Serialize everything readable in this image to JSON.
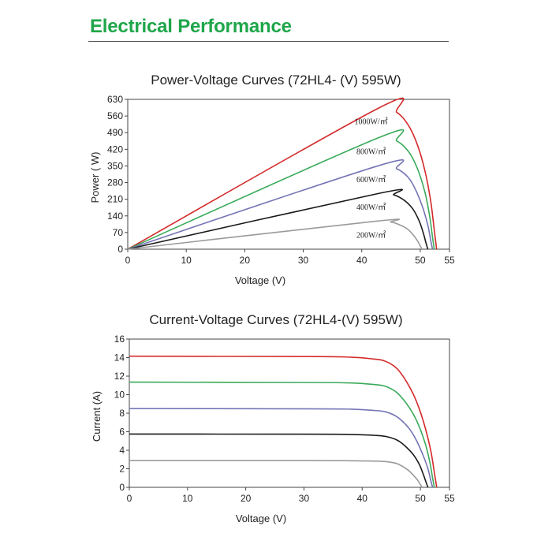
{
  "header": {
    "title": "Electrical Performance",
    "accent_color": "#1fa64a"
  },
  "chart_data": [
    {
      "type": "line",
      "title": "Power-Voltage Curves (72HL4- (V) 595W)",
      "xlabel": "Voltage (V)",
      "ylabel": "Power ( W)",
      "xlim": [
        0,
        55
      ],
      "ylim": [
        0,
        630
      ],
      "xticks": [
        0,
        10,
        20,
        30,
        40,
        50,
        55
      ],
      "yticks": [
        0,
        70,
        140,
        210,
        280,
        350,
        420,
        490,
        560,
        630
      ],
      "grid": false,
      "series": [
        {
          "name": "1000W/㎡",
          "color": "#d42a2a",
          "x": [
            0,
            43.0,
            46.0,
            48.0,
            49.5,
            50.8,
            51.8,
            52.4,
            52.8
          ],
          "y": [
            0,
            595,
            575,
            520,
            440,
            330,
            200,
            80,
            0
          ]
        },
        {
          "name": "800W/㎡",
          "color": "#3aaa5a",
          "x": [
            0,
            43.0,
            46.0,
            48.0,
            49.5,
            50.8,
            51.6,
            52.1,
            52.4
          ],
          "y": [
            0,
            470,
            455,
            410,
            340,
            240,
            140,
            50,
            0
          ]
        },
        {
          "name": "600W/㎡",
          "color": "#7474b6",
          "x": [
            0,
            43.0,
            46.0,
            48.0,
            49.3,
            50.5,
            51.3,
            51.8,
            52.1
          ],
          "y": [
            0,
            352,
            338,
            300,
            245,
            170,
            100,
            35,
            0
          ]
        },
        {
          "name": "400W/㎡",
          "color": "#1a1a1a",
          "x": [
            0,
            43.0,
            45.5,
            47.3,
            48.7,
            49.8,
            50.5,
            51.0,
            51.3
          ],
          "y": [
            0,
            235,
            228,
            205,
            170,
            120,
            70,
            25,
            0
          ]
        },
        {
          "name": "200W/㎡",
          "color": "#9a9a9a",
          "x": [
            0,
            42.5,
            45.0,
            46.5,
            47.8,
            48.8,
            49.5,
            50.0,
            50.3
          ],
          "y": [
            0,
            118,
            114,
            102,
            85,
            60,
            36,
            14,
            0
          ]
        }
      ]
    },
    {
      "type": "line",
      "title": "Current-Voltage Curves (72HL4-(V) 595W)",
      "xlabel": "Voltage (V)",
      "ylabel": "Current (A)",
      "xlim": [
        0,
        55
      ],
      "ylim": [
        0,
        16
      ],
      "xticks": [
        0,
        10,
        20,
        30,
        40,
        50,
        55
      ],
      "yticks": [
        0,
        2,
        4,
        6,
        8,
        10,
        12,
        14,
        16
      ],
      "grid": false,
      "series": [
        {
          "color": "#d42a2a",
          "x": [
            0,
            30,
            38,
            42,
            44,
            46,
            48,
            49.5,
            50.8,
            51.8,
            52.4,
            52.8
          ],
          "y": [
            14.15,
            14.12,
            14.05,
            13.85,
            13.6,
            12.8,
            11.0,
            9.0,
            6.5,
            3.9,
            1.6,
            0
          ]
        },
        {
          "color": "#3aaa5a",
          "x": [
            0,
            30,
            38,
            42,
            44,
            46,
            48,
            49.5,
            50.8,
            51.6,
            52.1,
            52.4
          ],
          "y": [
            11.35,
            11.32,
            11.27,
            11.1,
            10.9,
            10.2,
            8.7,
            7.0,
            4.8,
            2.8,
            1.0,
            0
          ]
        },
        {
          "color": "#7474b6",
          "x": [
            0,
            30,
            38,
            42,
            44,
            46,
            48,
            49.3,
            50.5,
            51.3,
            51.8,
            52.1
          ],
          "y": [
            8.5,
            8.48,
            8.44,
            8.3,
            8.15,
            7.6,
            6.4,
            5.1,
            3.4,
            2.0,
            0.7,
            0
          ]
        },
        {
          "color": "#1a1a1a",
          "x": [
            0,
            30,
            38,
            42,
            44,
            46,
            47.3,
            48.7,
            49.8,
            50.5,
            51.0,
            51.3
          ],
          "y": [
            5.75,
            5.74,
            5.71,
            5.62,
            5.5,
            5.1,
            4.5,
            3.6,
            2.5,
            1.4,
            0.5,
            0
          ]
        },
        {
          "color": "#9a9a9a",
          "x": [
            0,
            30,
            38,
            42,
            44,
            46,
            47.8,
            48.8,
            49.5,
            50.0,
            50.3
          ],
          "y": [
            2.9,
            2.9,
            2.87,
            2.83,
            2.78,
            2.55,
            1.9,
            1.3,
            0.8,
            0.3,
            0
          ]
        }
      ]
    }
  ]
}
